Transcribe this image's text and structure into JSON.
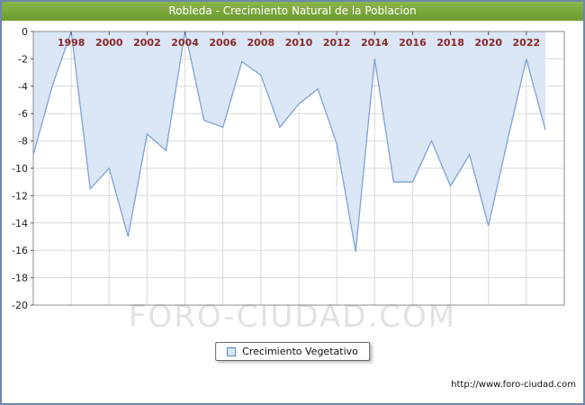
{
  "window": {
    "border_color": "#6f87ab"
  },
  "title_bar": {
    "text": "Robleda - Crecimiento Natural de la Poblacion",
    "bg_color": "#7aa637",
    "text_color": "#ffffff"
  },
  "chart_data": {
    "type": "area",
    "title": "Robleda - Crecimiento Natural de la Poblacion",
    "series_name": "Crecimiento Vegetativo",
    "x": [
      1996,
      1997,
      1998,
      1999,
      2000,
      2001,
      2002,
      2003,
      2004,
      2005,
      2006,
      2007,
      2008,
      2009,
      2010,
      2011,
      2012,
      2013,
      2014,
      2015,
      2016,
      2017,
      2018,
      2019,
      2020,
      2021,
      2022,
      2023
    ],
    "values": [
      -9,
      -4,
      0,
      -11.5,
      -10,
      -15,
      -7.5,
      -8.7,
      0,
      -6.5,
      -7,
      -2.2,
      -3.2,
      -7,
      -5.3,
      -4.2,
      -8.2,
      -16.1,
      -2,
      -11,
      -11,
      -8,
      -11.3,
      -9,
      -14.2,
      -8,
      -2,
      -7.2
    ],
    "x_range": [
      1996,
      2024
    ],
    "ylim": [
      -20,
      0
    ],
    "y_ticks": [
      0,
      -2,
      -4,
      -6,
      -8,
      -10,
      -12,
      -14,
      -16,
      -18,
      -20
    ],
    "x_ticks": [
      1998,
      2000,
      2002,
      2004,
      2006,
      2008,
      2010,
      2012,
      2014,
      2016,
      2018,
      2020,
      2022
    ],
    "grid": true,
    "legend_position": "bottom-center",
    "line_color": "#7fa3d4",
    "fill_color": "#dbe6f6",
    "x_label_color": "#8b2727",
    "y_label_color": "#222222",
    "grid_color": "#d9d9d9",
    "axis_border_color": "#8c8c8c"
  },
  "legend": {
    "label": "Crecimiento Vegetativo"
  },
  "watermark": "FORO-CIUDAD.COM",
  "footer": {
    "url": "http://www.foro-ciudad.com"
  }
}
